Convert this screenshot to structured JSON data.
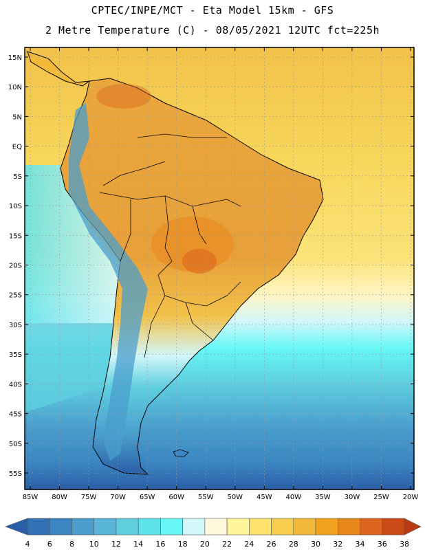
{
  "title_line1": "CPTEC/INPE/MCT -  Eta Model 15km - GFS",
  "title_line2": "2 Metre Temperature (C) - 08/05/2021 12UTC fct=225h",
  "lat_labels": [
    "15N",
    "10N",
    "5N",
    "EQ",
    "5S",
    "10S",
    "15S",
    "20S",
    "25S",
    "30S",
    "35S",
    "40S",
    "45S",
    "50S",
    "55S"
  ],
  "lat_values": [
    15,
    10,
    5,
    0,
    -5,
    -10,
    -15,
    -20,
    -25,
    -30,
    -35,
    -40,
    -45,
    -50,
    -55
  ],
  "lon_labels": [
    "85W",
    "80W",
    "75W",
    "70W",
    "65W",
    "60W",
    "55W",
    "50W",
    "45W",
    "40W",
    "35W",
    "30W",
    "25W",
    "20W"
  ],
  "lon_values": [
    -85,
    -80,
    -75,
    -70,
    -65,
    -60,
    -55,
    -50,
    -45,
    -40,
    -35,
    -30,
    -25,
    -20
  ],
  "colorbar": {
    "labels": [
      "4",
      "6",
      "8",
      "10",
      "12",
      "14",
      "16",
      "18",
      "20",
      "22",
      "24",
      "26",
      "28",
      "30",
      "32",
      "34",
      "36",
      "38"
    ],
    "colors": [
      "#2a5ea6",
      "#3171b4",
      "#3b86c2",
      "#4a9dcc",
      "#58b5d6",
      "#5fcfe0",
      "#5fe3ea",
      "#66f7f5",
      "#d2f6fa",
      "#fff8dc",
      "#fff59a",
      "#fde26b",
      "#f7cd4e",
      "#f2b93b",
      "#f0a21d",
      "#e8871b",
      "#dc661d",
      "#cc4a16",
      "#ba3b10"
    ]
  },
  "colors": {
    "ocean_warm": "#f7d65a",
    "ocean_cool": "#5fcfe0",
    "land_hot": "#e6a33a",
    "andes": "#4a9dcc"
  }
}
